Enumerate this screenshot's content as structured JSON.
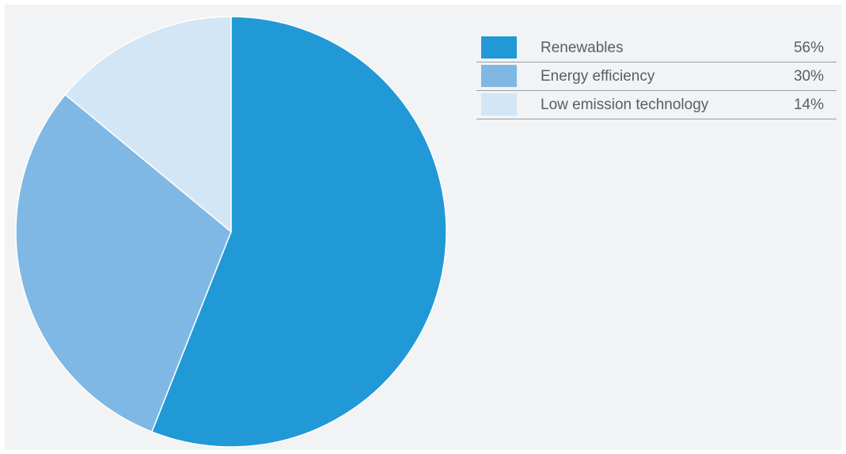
{
  "chart_data": {
    "type": "pie",
    "title": "",
    "categories": [
      "Renewables",
      "Energy efficiency",
      "Low emission technology"
    ],
    "values": [
      56,
      30,
      14
    ],
    "value_labels": [
      "56%",
      "30%",
      "14%"
    ],
    "colors": [
      "#2199d6",
      "#7fb8e4",
      "#d2e6f6"
    ],
    "start_angle_deg": 0,
    "direction": "clockwise",
    "legend_position": "right"
  }
}
